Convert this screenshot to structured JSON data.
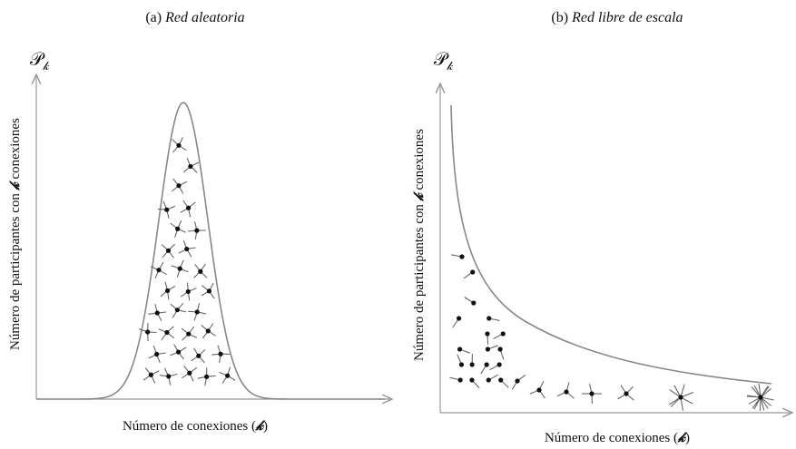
{
  "panels": [
    {
      "label": "(a)",
      "title": "Red aleatoria",
      "y_symbol": "𝒫",
      "y_symbol_sub": "𝓀",
      "y_label": {
        "prefix": "Número de participantes con",
        "variable": "𝓀",
        "suffix": "conexiones"
      },
      "x_label": {
        "prefix": "Número de conexiones (",
        "variable": "𝓀",
        "suffix": ")"
      }
    },
    {
      "label": "(b)",
      "title": "Red libre de escala",
      "y_symbol": "𝒫",
      "y_symbol_sub": "𝓀",
      "y_label": {
        "prefix": "Número de participantes con",
        "variable": "𝓀",
        "suffix": "conexiones"
      },
      "x_label": {
        "prefix": "Número de conexiones (",
        "variable": "𝓀",
        "suffix": ")"
      }
    }
  ]
}
